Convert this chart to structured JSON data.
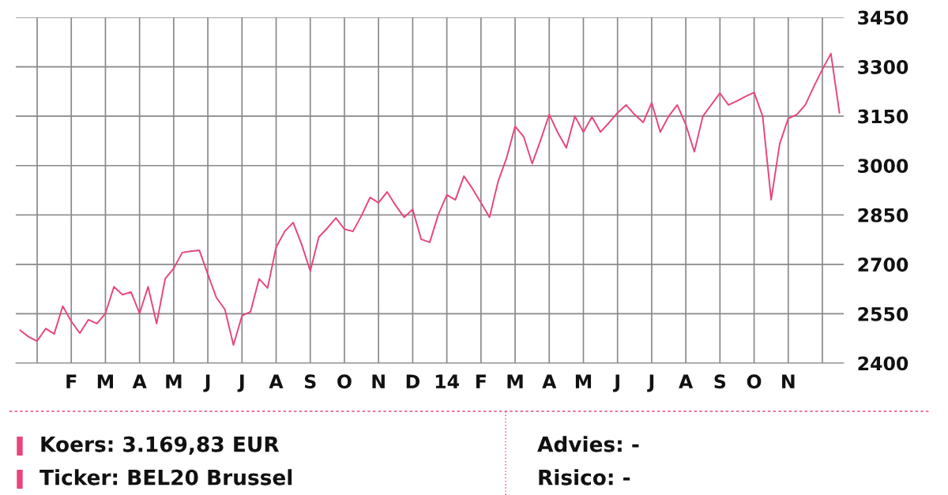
{
  "chart_data": {
    "type": "line",
    "categories": [
      null,
      null,
      null,
      null,
      null,
      null,
      "F",
      null,
      null,
      null,
      "M",
      null,
      null,
      null,
      "A",
      null,
      null,
      null,
      "M",
      null,
      null,
      null,
      "J",
      null,
      null,
      null,
      "J",
      null,
      null,
      null,
      "A",
      null,
      null,
      null,
      "S",
      null,
      null,
      null,
      "O",
      null,
      null,
      null,
      "N",
      null,
      null,
      null,
      "D",
      null,
      null,
      null,
      "14",
      null,
      null,
      null,
      "F",
      null,
      null,
      null,
      "M",
      null,
      null,
      null,
      "A",
      null,
      null,
      null,
      "M",
      null,
      null,
      null,
      "J",
      null,
      null,
      null,
      "J",
      null,
      null,
      null,
      "A",
      null,
      null,
      null,
      "S",
      null,
      null,
      null,
      "O",
      null,
      null,
      null,
      "N",
      null,
      null,
      null,
      null,
      null,
      null
    ],
    "series": [
      {
        "color": "#e8457a",
        "values": [
          2500,
          2480,
          2467,
          2505,
          2489,
          2573,
          2527,
          2491,
          2532,
          2520,
          2551,
          2632,
          2608,
          2616,
          2551,
          2632,
          2520,
          2656,
          2688,
          2736,
          2740,
          2743,
          2670,
          2599,
          2563,
          2455,
          2544,
          2556,
          2656,
          2628,
          2752,
          2800,
          2827,
          2760,
          2680,
          2783,
          2810,
          2841,
          2807,
          2800,
          2848,
          2903,
          2887,
          2920,
          2879,
          2843,
          2867,
          2776,
          2767,
          2851,
          2911,
          2896,
          2968,
          2930,
          2887,
          2843,
          2951,
          3023,
          3119,
          3088,
          3006,
          3078,
          3155,
          3100,
          3054,
          3150,
          3102,
          3148,
          3102,
          3130,
          3160,
          3184,
          3155,
          3131,
          3191,
          3102,
          3150,
          3184,
          3124,
          3042,
          3150,
          3185,
          3220,
          3184,
          3196,
          3210,
          3222,
          3150,
          2896,
          3066,
          3143,
          3155,
          3184,
          3240,
          3292,
          3340,
          3160
        ]
      }
    ],
    "ylim": [
      2400,
      3450
    ],
    "yticks": [
      2400,
      2550,
      2700,
      2850,
      3000,
      3150,
      3300,
      3450
    ],
    "grid": true,
    "annotations": [
      "Koers: 3.169,83 EUR",
      "Ticker: BEL20 Brussel",
      "Advies: -",
      "Risico: -"
    ]
  }
}
